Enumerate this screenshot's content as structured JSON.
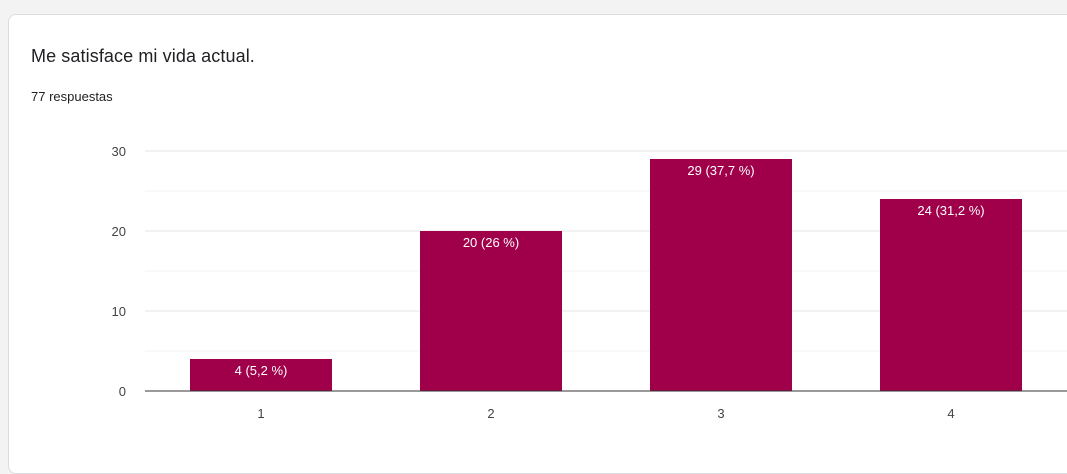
{
  "question": {
    "title": "Me satisface mi vida actual.",
    "responses": "77 respuestas"
  },
  "colors": {
    "bar": "#a0004a",
    "grid_major": "#e6e6e6",
    "grid_minor": "#f3f3f3",
    "axis": "#333333",
    "tick_text": "#444444",
    "bar_label": "#ffffff"
  },
  "chart_data": {
    "type": "bar",
    "categories": [
      "1",
      "2",
      "3",
      "4"
    ],
    "values": [
      4,
      20,
      29,
      24
    ],
    "labels": [
      "4 (5,2 %)",
      "20 (26 %)",
      "29 (37,7 %)",
      "24 (31,2 %)"
    ],
    "yticks": [
      "0",
      "10",
      "20",
      "30"
    ],
    "ylim": [
      0,
      30
    ],
    "grid": true
  }
}
